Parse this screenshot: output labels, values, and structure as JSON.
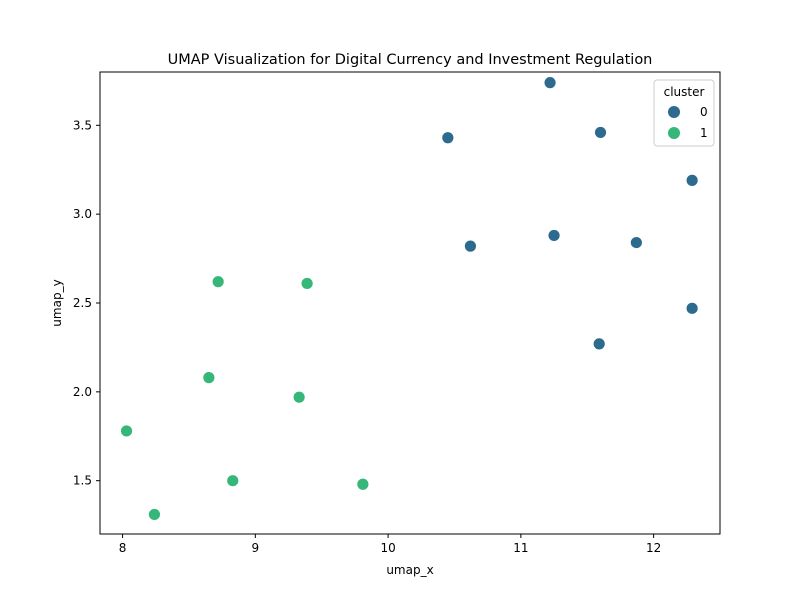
{
  "chart_data": {
    "type": "scatter",
    "title": "UMAP Visualization for Digital Currency and Investment Regulation",
    "xlabel": "umap_x",
    "ylabel": "umap_y",
    "xlim": [
      7.83,
      12.5
    ],
    "ylim": [
      1.2,
      3.8
    ],
    "x_ticks": [
      8,
      9,
      10,
      11,
      12
    ],
    "y_ticks": [
      1.5,
      2.0,
      2.5,
      3.0,
      3.5
    ],
    "grid": false,
    "legend": {
      "title": "cluster",
      "placement": "top-right",
      "entries": [
        "0",
        "1"
      ]
    },
    "series": [
      {
        "name": "0",
        "color": "#2c6b8e",
        "points": [
          {
            "x": 11.22,
            "y": 3.74
          },
          {
            "x": 10.45,
            "y": 3.43
          },
          {
            "x": 11.6,
            "y": 3.46
          },
          {
            "x": 12.29,
            "y": 3.19
          },
          {
            "x": 10.62,
            "y": 2.82
          },
          {
            "x": 11.25,
            "y": 2.88
          },
          {
            "x": 11.87,
            "y": 2.84
          },
          {
            "x": 12.29,
            "y": 2.47
          },
          {
            "x": 11.59,
            "y": 2.27
          }
        ]
      },
      {
        "name": "1",
        "color": "#35b779",
        "points": [
          {
            "x": 8.72,
            "y": 2.62
          },
          {
            "x": 9.39,
            "y": 2.61
          },
          {
            "x": 8.65,
            "y": 2.08
          },
          {
            "x": 9.33,
            "y": 1.97
          },
          {
            "x": 8.03,
            "y": 1.78
          },
          {
            "x": 8.83,
            "y": 1.5
          },
          {
            "x": 9.81,
            "y": 1.48
          },
          {
            "x": 8.24,
            "y": 1.31
          }
        ]
      }
    ]
  }
}
